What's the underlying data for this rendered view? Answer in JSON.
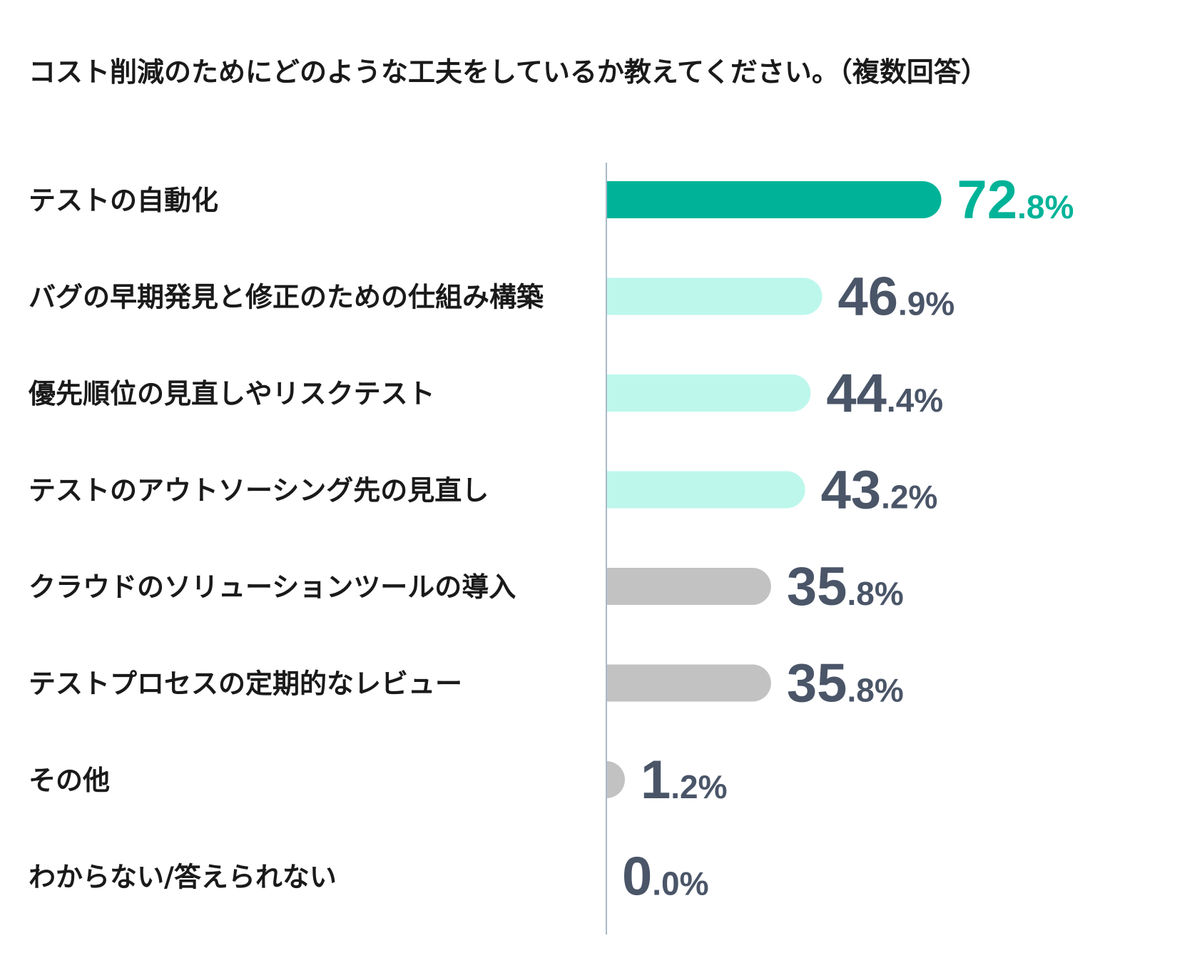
{
  "chart_data": {
    "type": "bar",
    "orientation": "horizontal",
    "title": "コスト削減のためにどのような工夫をしているか教えてください。（複数回答）",
    "categories": [
      "テストの自動化",
      "バグの早期発見と修正のための仕組み構築",
      "優先順位の見直しやリスクテスト",
      "テストのアウトソーシング先の見直し",
      "クラウドのソリューションツールの導入",
      "テストプロセスの定期的なレビュー",
      "その他",
      "わからない/答えられない"
    ],
    "values": [
      72.8,
      46.9,
      44.4,
      43.2,
      35.8,
      35.8,
      1.2,
      0.0
    ],
    "value_labels": [
      {
        "int": "72",
        "dec": ".8%"
      },
      {
        "int": "46",
        "dec": ".9%"
      },
      {
        "int": "44",
        "dec": ".4%"
      },
      {
        "int": "43",
        "dec": ".2%"
      },
      {
        "int": "35",
        "dec": ".8%"
      },
      {
        "int": "35",
        "dec": ".8%"
      },
      {
        "int": "1",
        "dec": ".2%"
      },
      {
        "int": "0",
        "dec": ".0%"
      }
    ],
    "bar_colors": [
      "#00b398",
      "#bdf7ec",
      "#bdf7ec",
      "#bdf7ec",
      "#c2c2c2",
      "#c2c2c2",
      "#c2c2c2",
      "#c2c2c2"
    ],
    "label_colors": [
      "#00b398",
      "#4a5568",
      "#4a5568",
      "#4a5568",
      "#4a5568",
      "#4a5568",
      "#4a5568",
      "#4a5568"
    ],
    "axis_color": "#a8b8c8",
    "xlim": [
      0,
      100
    ],
    "xlabel": "",
    "ylabel": "",
    "grid": false,
    "legend": "none"
  }
}
